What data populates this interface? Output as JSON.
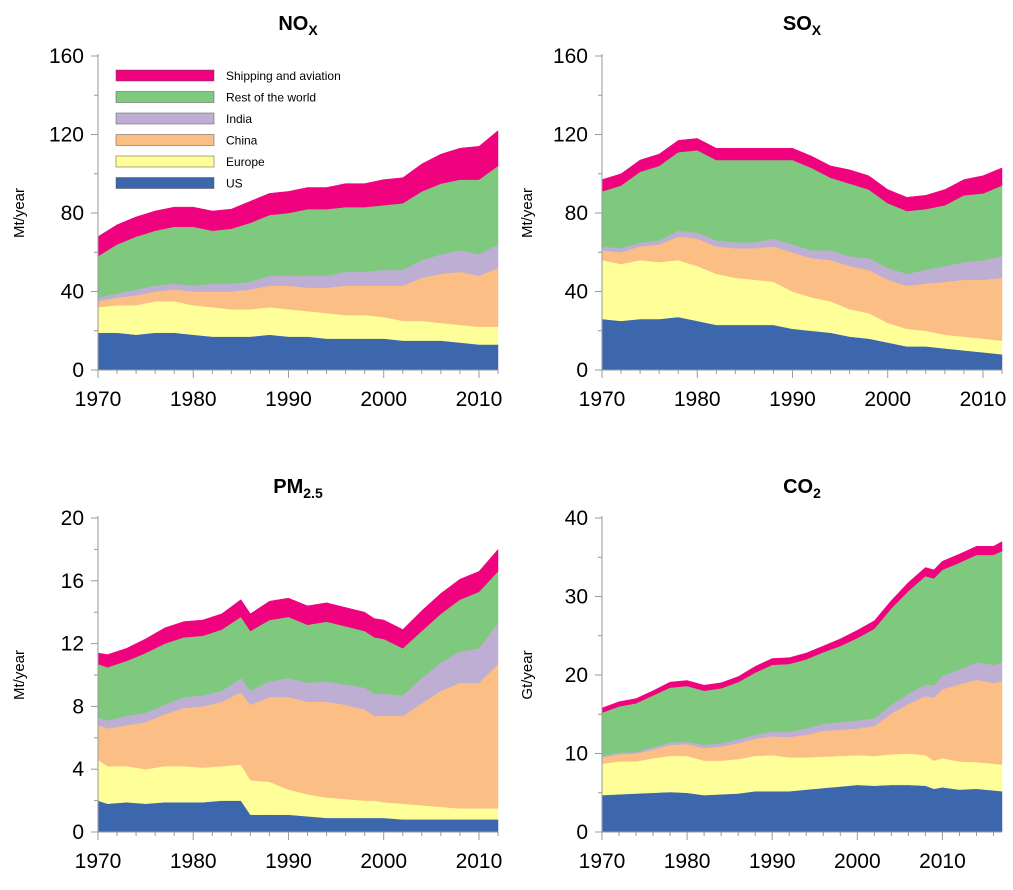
{
  "series_colors": {
    "US": "#3d67ad",
    "Europe": "#ffff99",
    "China": "#fbbf85",
    "India": "#beaed4",
    "Rest of the world": "#7fc97f",
    "Shipping and aviation": "#f0027f"
  },
  "chart_data": [
    {
      "type": "area",
      "title_main": "NO",
      "title_sub": "X",
      "ylabel": "Mt/year",
      "xlim": [
        1970,
        2012
      ],
      "ylim": [
        0,
        160
      ],
      "xticks": [
        1970,
        1980,
        1990,
        2000,
        2010
      ],
      "yticks": [
        0,
        40,
        80,
        120,
        160
      ],
      "legend": {
        "placement": "top-left",
        "entries": [
          "Shipping and aviation",
          "Rest of the world",
          "India",
          "China",
          "Europe",
          "US"
        ]
      },
      "x": [
        1970,
        1972,
        1974,
        1976,
        1978,
        1980,
        1982,
        1984,
        1986,
        1988,
        1990,
        1992,
        1994,
        1996,
        1998,
        2000,
        2002,
        2004,
        2006,
        2008,
        2010,
        2012
      ],
      "series": [
        {
          "name": "US",
          "values": [
            19,
            19,
            18,
            19,
            19,
            18,
            17,
            17,
            17,
            18,
            17,
            17,
            16,
            16,
            16,
            16,
            15,
            15,
            15,
            14,
            13,
            13
          ]
        },
        {
          "name": "Europe",
          "values": [
            13,
            14,
            15,
            16,
            16,
            15,
            15,
            14,
            14,
            14,
            14,
            13,
            13,
            12,
            12,
            11,
            10,
            10,
            9,
            9,
            9,
            9
          ]
        },
        {
          "name": "China",
          "values": [
            3,
            4,
            5,
            5,
            6,
            7,
            8,
            9,
            10,
            11,
            12,
            12,
            13,
            15,
            15,
            16,
            18,
            22,
            25,
            27,
            26,
            30
          ]
        },
        {
          "name": "India",
          "values": [
            2,
            2,
            3,
            3,
            3,
            3,
            4,
            4,
            4,
            5,
            5,
            6,
            6,
            7,
            7,
            8,
            8,
            9,
            10,
            11,
            11,
            12
          ]
        },
        {
          "name": "Rest of the world",
          "values": [
            21,
            25,
            27,
            28,
            29,
            30,
            27,
            28,
            30,
            31,
            32,
            34,
            34,
            33,
            33,
            33,
            34,
            35,
            36,
            36,
            38,
            40
          ]
        },
        {
          "name": "Shipping and aviation",
          "values": [
            10,
            10,
            10,
            10,
            10,
            10,
            10,
            10,
            11,
            11,
            11,
            11,
            11,
            12,
            12,
            13,
            13,
            14,
            15,
            16,
            17,
            18
          ]
        }
      ]
    },
    {
      "type": "area",
      "title_main": "SO",
      "title_sub": "X",
      "ylabel": "Mt/year",
      "xlim": [
        1970,
        2012
      ],
      "ylim": [
        0,
        160
      ],
      "xticks": [
        1970,
        1980,
        1990,
        2000,
        2010
      ],
      "yticks": [
        0,
        40,
        80,
        120,
        160
      ],
      "x": [
        1970,
        1972,
        1974,
        1976,
        1978,
        1980,
        1982,
        1984,
        1986,
        1988,
        1990,
        1992,
        1994,
        1996,
        1998,
        2000,
        2002,
        2004,
        2006,
        2008,
        2010,
        2012
      ],
      "series": [
        {
          "name": "US",
          "values": [
            26,
            25,
            26,
            26,
            27,
            25,
            23,
            23,
            23,
            23,
            21,
            20,
            19,
            17,
            16,
            14,
            12,
            12,
            11,
            10,
            9,
            8
          ]
        },
        {
          "name": "Europe",
          "values": [
            30,
            29,
            30,
            29,
            29,
            28,
            26,
            24,
            23,
            22,
            19,
            17,
            16,
            14,
            13,
            10,
            9,
            8,
            7,
            7,
            7,
            7
          ]
        },
        {
          "name": "China",
          "values": [
            5,
            6,
            7,
            9,
            12,
            14,
            14,
            15,
            16,
            18,
            20,
            20,
            21,
            22,
            22,
            22,
            22,
            24,
            27,
            29,
            30,
            32
          ]
        },
        {
          "name": "India",
          "values": [
            2,
            2,
            2,
            2,
            3,
            3,
            3,
            3,
            3,
            4,
            4,
            4,
            5,
            5,
            6,
            6,
            6,
            7,
            8,
            9,
            10,
            11
          ]
        },
        {
          "name": "Rest of the world",
          "values": [
            28,
            32,
            36,
            38,
            40,
            42,
            41,
            42,
            42,
            40,
            43,
            42,
            37,
            37,
            35,
            33,
            32,
            31,
            31,
            34,
            34,
            36
          ]
        },
        {
          "name": "Shipping and aviation",
          "values": [
            6,
            6,
            6,
            6,
            6,
            6,
            6,
            6,
            6,
            6,
            6,
            6,
            6,
            7,
            7,
            7,
            7,
            7,
            8,
            8,
            9,
            9
          ]
        }
      ]
    },
    {
      "type": "area",
      "title_main": "PM",
      "title_sub": "2.5",
      "ylabel": "Mt/year",
      "xlim": [
        1970,
        2012
      ],
      "ylim": [
        0,
        20
      ],
      "xticks": [
        1970,
        1980,
        1990,
        2000,
        2010
      ],
      "yticks": [
        0,
        4,
        8,
        12,
        16,
        20
      ],
      "x": [
        1970,
        1971,
        1973,
        1975,
        1977,
        1979,
        1981,
        1983,
        1985,
        1986,
        1988,
        1990,
        1992,
        1994,
        1996,
        1998,
        1999,
        2000,
        2002,
        2004,
        2006,
        2008,
        2010,
        2012
      ],
      "series": [
        {
          "name": "US",
          "values": [
            2.0,
            1.8,
            1.9,
            1.8,
            1.9,
            1.9,
            1.9,
            2.0,
            2.0,
            1.1,
            1.1,
            1.1,
            1.0,
            0.9,
            0.9,
            0.9,
            0.9,
            0.9,
            0.8,
            0.8,
            0.8,
            0.8,
            0.8,
            0.8
          ]
        },
        {
          "name": "Europe",
          "values": [
            2.6,
            2.4,
            2.3,
            2.2,
            2.3,
            2.3,
            2.2,
            2.2,
            2.3,
            2.2,
            2.1,
            1.6,
            1.4,
            1.3,
            1.2,
            1.1,
            1.1,
            1.0,
            1.0,
            0.9,
            0.8,
            0.7,
            0.7,
            0.7
          ]
        },
        {
          "name": "China",
          "values": [
            2.2,
            2.4,
            2.6,
            3.0,
            3.3,
            3.7,
            3.9,
            4.1,
            4.6,
            4.8,
            5.4,
            5.9,
            5.9,
            6.1,
            6.0,
            5.8,
            5.4,
            5.5,
            5.6,
            6.5,
            7.4,
            8.0,
            8.0,
            9.2
          ]
        },
        {
          "name": "India",
          "values": [
            0.5,
            0.5,
            0.6,
            0.6,
            0.6,
            0.7,
            0.7,
            0.7,
            0.9,
            0.9,
            1.0,
            1.2,
            1.2,
            1.3,
            1.3,
            1.4,
            1.4,
            1.4,
            1.3,
            1.6,
            1.8,
            2.0,
            2.2,
            2.6
          ]
        },
        {
          "name": "Rest of the world",
          "values": [
            3.4,
            3.4,
            3.5,
            3.8,
            3.9,
            3.8,
            3.8,
            3.9,
            3.9,
            3.8,
            3.9,
            3.9,
            3.7,
            3.8,
            3.7,
            3.6,
            3.6,
            3.5,
            3.0,
            3.0,
            3.1,
            3.3,
            3.6,
            3.3
          ]
        },
        {
          "name": "Shipping and aviation",
          "values": [
            0.7,
            0.8,
            0.8,
            0.9,
            1.0,
            1.0,
            1.0,
            1.0,
            1.1,
            1.1,
            1.2,
            1.2,
            1.2,
            1.2,
            1.2,
            1.2,
            1.2,
            1.2,
            1.2,
            1.3,
            1.3,
            1.3,
            1.3,
            1.4
          ]
        }
      ]
    },
    {
      "type": "area",
      "title_main": "CO",
      "title_sub": "2",
      "ylabel": "Gt/year",
      "xlim": [
        1970,
        2017
      ],
      "ylim": [
        0,
        40
      ],
      "xticks": [
        1970,
        1980,
        1990,
        2000,
        2010
      ],
      "yticks": [
        0,
        10,
        20,
        30,
        40
      ],
      "x": [
        1970,
        1972,
        1974,
        1976,
        1978,
        1980,
        1982,
        1984,
        1986,
        1988,
        1990,
        1992,
        1994,
        1996,
        1998,
        2000,
        2002,
        2004,
        2006,
        2008,
        2009,
        2010,
        2012,
        2014,
        2016,
        2017
      ],
      "series": [
        {
          "name": "US",
          "values": [
            4.7,
            4.8,
            4.9,
            5.0,
            5.1,
            5.0,
            4.7,
            4.8,
            4.9,
            5.2,
            5.2,
            5.2,
            5.4,
            5.6,
            5.8,
            6.0,
            5.9,
            6.0,
            6.0,
            5.9,
            5.5,
            5.7,
            5.4,
            5.5,
            5.3,
            5.2
          ]
        },
        {
          "name": "Europe",
          "values": [
            4.0,
            4.2,
            4.1,
            4.4,
            4.6,
            4.7,
            4.4,
            4.3,
            4.4,
            4.5,
            4.6,
            4.3,
            4.1,
            4.0,
            3.9,
            3.8,
            3.8,
            3.9,
            4.0,
            3.9,
            3.6,
            3.7,
            3.6,
            3.4,
            3.4,
            3.4
          ]
        },
        {
          "name": "China",
          "values": [
            0.8,
            0.9,
            1.0,
            1.1,
            1.4,
            1.5,
            1.6,
            1.8,
            2.0,
            2.2,
            2.4,
            2.6,
            2.9,
            3.3,
            3.3,
            3.4,
            3.8,
            5.2,
            6.3,
            7.5,
            8.0,
            8.8,
            9.8,
            10.5,
            10.3,
            10.6
          ]
        },
        {
          "name": "India",
          "values": [
            0.2,
            0.2,
            0.2,
            0.3,
            0.3,
            0.3,
            0.4,
            0.4,
            0.5,
            0.5,
            0.6,
            0.7,
            0.8,
            0.9,
            1.0,
            1.0,
            1.0,
            1.1,
            1.3,
            1.5,
            1.6,
            1.7,
            1.9,
            2.2,
            2.3,
            2.4
          ]
        },
        {
          "name": "Rest of the world",
          "values": [
            5.5,
            5.9,
            6.2,
            6.6,
            7.0,
            7.1,
            6.9,
            7.0,
            7.3,
            7.9,
            8.5,
            8.6,
            8.8,
            9.1,
            9.7,
            10.5,
            11.4,
            12.3,
            13.1,
            13.8,
            13.6,
            13.5,
            13.6,
            13.7,
            14.0,
            14.2
          ]
        },
        {
          "name": "Shipping and aviation",
          "values": [
            0.6,
            0.6,
            0.6,
            0.6,
            0.7,
            0.7,
            0.7,
            0.7,
            0.7,
            0.8,
            0.8,
            0.8,
            0.8,
            0.8,
            0.9,
            1.0,
            1.0,
            1.0,
            1.1,
            1.1,
            1.1,
            1.1,
            1.1,
            1.1,
            1.1,
            1.2
          ]
        }
      ]
    }
  ]
}
